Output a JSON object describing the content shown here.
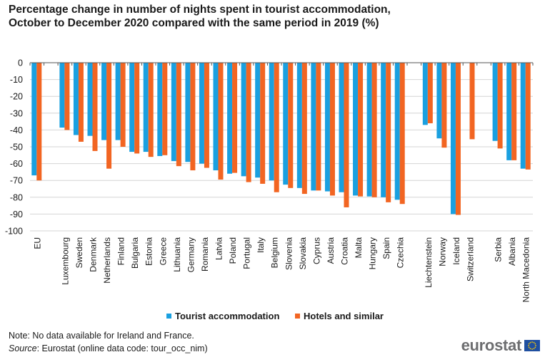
{
  "chart_data": {
    "type": "bar",
    "title": "Percentage change in number of nights spent in tourist accommodation, October to December 2020 compared with the same period in 2019 (%)",
    "title_lines": [
      "Percentage change in number of nights spent in tourist accommodation,",
      "October to December 2020 compared with the same period in 2019 (%)"
    ],
    "xlabel": "",
    "ylabel": "",
    "ylim": [
      -100,
      0
    ],
    "yticks": [
      0,
      -10,
      -20,
      -30,
      -40,
      -50,
      -60,
      -70,
      -80,
      -90,
      -100
    ],
    "grid": true,
    "legend_position": "bottom-center",
    "category_groups": [
      [
        "EU"
      ],
      [
        "Luxembourg",
        "Sweden",
        "Denmark",
        "Netherlands",
        "Finland",
        "Bulgaria",
        "Estonia",
        "Greece",
        "Lithuania",
        "Germany",
        "Romania",
        "Latvia",
        "Poland",
        "Portugal",
        "Italy",
        "Belgium",
        "Slovenia",
        "Slovakia",
        "Cyprus",
        "Austria",
        "Croatia",
        "Malta",
        "Hungary",
        "Spain",
        "Czechia"
      ],
      [
        "Liechtenstein",
        "Norway",
        "Iceland",
        "Switzerland"
      ],
      [
        "Serbia",
        "Albania",
        "North Macedonia"
      ]
    ],
    "categories": [
      "EU",
      "Luxembourg",
      "Sweden",
      "Denmark",
      "Netherlands",
      "Finland",
      "Bulgaria",
      "Estonia",
      "Greece",
      "Lithuania",
      "Germany",
      "Romania",
      "Latvia",
      "Poland",
      "Portugal",
      "Italy",
      "Belgium",
      "Slovenia",
      "Slovakia",
      "Cyprus",
      "Austria",
      "Croatia",
      "Malta",
      "Hungary",
      "Spain",
      "Czechia",
      "Liechtenstein",
      "Norway",
      "Iceland",
      "Switzerland",
      "Serbia",
      "Albania",
      "North Macedonia"
    ],
    "series": [
      {
        "name": "Tourist accommodation",
        "color": "#1aa0e0",
        "values": [
          -67,
          -38.6,
          -43,
          -43.5,
          -46,
          -46,
          -53,
          -53,
          -55.5,
          -58.5,
          -59,
          -60,
          -64,
          -66,
          -67.5,
          -68.3,
          -70,
          -72.5,
          -74.5,
          -76,
          -76.5,
          -77,
          -79,
          -79.5,
          -80,
          -81.5,
          -37,
          -45,
          -90,
          null,
          -46.5,
          -58,
          -63
        ]
      },
      {
        "name": "Hotels and similar",
        "color": "#f26522",
        "values": [
          -70,
          -40,
          -47,
          -52.5,
          -63,
          -50,
          -54,
          -56,
          -55,
          -61.5,
          -64,
          -62.5,
          -69.5,
          -65.5,
          -71,
          -72,
          -77,
          -74.5,
          -78,
          -76,
          -79,
          -86,
          -79.5,
          -80,
          -83,
          -84,
          -36,
          -50.5,
          -90.5,
          -45.5,
          -51,
          -58,
          -63.5
        ]
      }
    ]
  },
  "legend": {
    "items": [
      {
        "label": "Tourist accommodation",
        "color": "#1aa0e0"
      },
      {
        "label": "Hotels and similar",
        "color": "#f26522"
      }
    ]
  },
  "footer": {
    "note": "Note: No data available for Ireland and France.",
    "source_label": "Source",
    "source_text": ": Eurostat (online data code: tour_occ_nim)"
  },
  "logo": {
    "text": "eurostat"
  }
}
